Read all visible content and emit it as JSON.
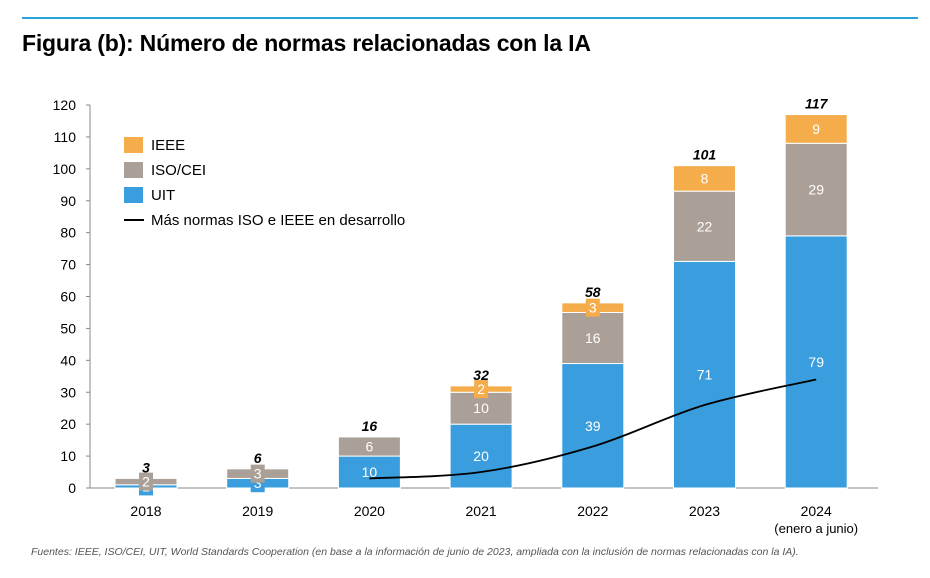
{
  "header": {
    "title": "Figura (b): Número de normas relacionadas con la IA"
  },
  "footer": {
    "source": "Fuentes: IEEE, ISO/CEI, UIT, World Standards Cooperation (en base a la información de junio de 2023, ampliada con la inclusión de normas relacionadas con la IA)."
  },
  "chart_data": {
    "type": "bar",
    "stacked": true,
    "categories": [
      "2018",
      "2019",
      "2020",
      "2021",
      "2022",
      "2023",
      "2024"
    ],
    "category_sublabels": [
      "",
      "",
      "",
      "",
      "",
      "",
      "(enero a junio)"
    ],
    "series": [
      {
        "name": "UIT",
        "color": "#3a9ede",
        "values": [
          1,
          3,
          10,
          20,
          39,
          71,
          79
        ]
      },
      {
        "name": "ISO/CEI",
        "color": "#aaa098",
        "values": [
          2,
          3,
          6,
          10,
          16,
          22,
          29
        ]
      },
      {
        "name": "IEEE",
        "color": "#f4ad4a",
        "values": [
          0,
          0,
          0,
          2,
          3,
          8,
          9
        ]
      }
    ],
    "totals": [
      "3",
      "6",
      "16",
      "32",
      "58",
      "101",
      "117"
    ],
    "line": {
      "name": "Más normas ISO e IEEE en desarrollo",
      "color": "#000000",
      "x": [
        "2020",
        "2021",
        "2022",
        "2023",
        "2024"
      ],
      "values": [
        3,
        5,
        13,
        26,
        34
      ]
    },
    "yticks": [
      "0",
      "10",
      "20",
      "30",
      "40",
      "50",
      "60",
      "70",
      "80",
      "90",
      "100",
      "110",
      "120"
    ],
    "ylim": [
      0,
      120
    ],
    "legend_position": "top-left",
    "grid": false
  }
}
